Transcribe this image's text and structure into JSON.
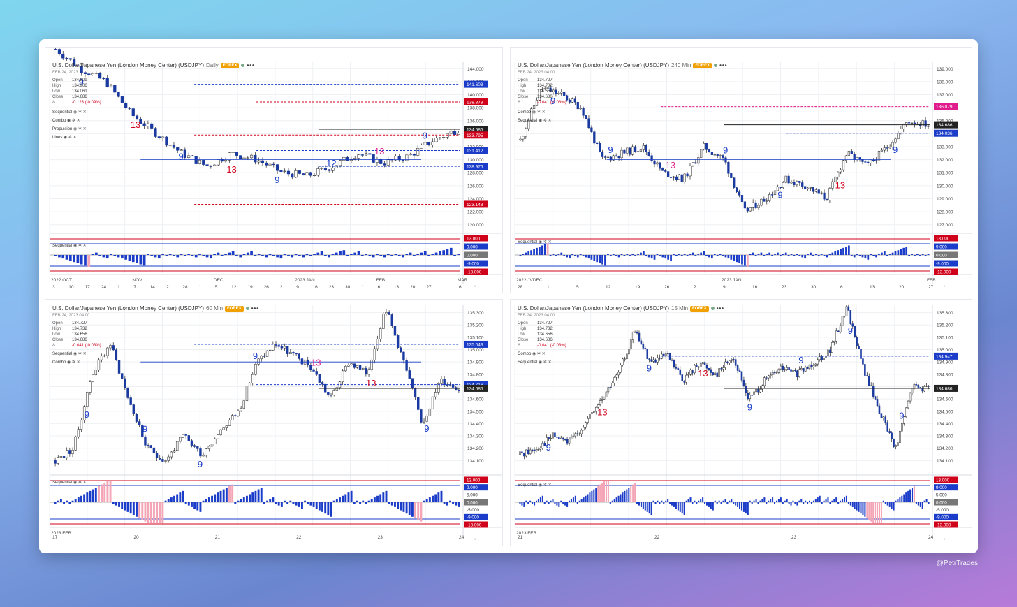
{
  "credit": "@PetrTrades",
  "colors": {
    "bull": "#ffffff",
    "bear": "#1a3aa0",
    "accent_blue": "#1a3cc8",
    "accent_red": "#d0021b",
    "magenta": "#e01b8c",
    "histo_pink": "#f4a6b6",
    "grid": "#eef0f4",
    "badge": "#f0a000"
  },
  "panels": [
    {
      "id": "daily",
      "title": "U.S. Dollar/Japanese Yen (London Money Center) (USDJPY)",
      "interval": "Daily",
      "badge": "FOREX",
      "date": "FEB 24, 2023",
      "ohlc": [
        {
          "k": "Open",
          "v": "134.809"
        },
        {
          "k": "High",
          "v": "134.906"
        },
        {
          "k": "Low",
          "v": "134.061"
        },
        {
          "k": "Close",
          "v": "134.686"
        },
        {
          "k": "Δ",
          "v": "-0.123 (-0.09%)"
        }
      ],
      "studies": [
        "Sequential",
        "Combo",
        "Propulsion",
        "Lines"
      ],
      "sub_label": "Sequential",
      "price_ticks": [
        "144.000",
        "142.000",
        "140.000",
        "138.000",
        "136.000",
        "134.000",
        "132.000",
        "130.000",
        "128.000",
        "126.000",
        "124.000",
        "122.000",
        "120.000"
      ],
      "y_range": [
        119,
        145
      ],
      "price_badges": [
        {
          "v": "141.603",
          "color": "#1a3cc8"
        },
        {
          "v": "138.878",
          "color": "#d0021b"
        },
        {
          "v": "134.686",
          "color": "#222222"
        },
        {
          "v": "133.795",
          "color": "#d0021b"
        },
        {
          "v": "131.412",
          "color": "#1a3cc8"
        },
        {
          "v": "128.976",
          "color": "#1a3cc8"
        },
        {
          "v": "123.143",
          "color": "#d0021b"
        }
      ],
      "sub_badges": [
        "13.000",
        "9.000",
        "0.000",
        "-9.000",
        "-13.000"
      ],
      "x_row1": [
        "2022 OCT",
        "NOV",
        "DEC",
        "2023 JAN",
        "FEB",
        "MAR"
      ],
      "x_row2": [
        "3",
        "10",
        "17",
        "24",
        "1",
        "7",
        "14",
        "21",
        "28",
        "1",
        "5",
        "12",
        "19",
        "26",
        "2",
        "9",
        "16",
        "23",
        "30",
        "1",
        "6",
        "13",
        "20",
        "27",
        "1",
        "6"
      ],
      "seed": 7,
      "path": [
        147,
        144,
        142,
        137,
        134,
        131,
        129,
        131,
        130,
        128,
        127.5,
        129,
        131,
        129.5,
        130.5,
        133,
        134.686
      ],
      "labels": [
        "9",
        "13",
        "9",
        "13",
        "9",
        "12",
        "13",
        "9"
      ],
      "nbars": 110
    },
    {
      "id": "m240",
      "title": "U.S. Dollar/Japanese Yen (London Money Center) (USDJPY)",
      "interval": "240 Min",
      "badge": "FOREX",
      "date": "FEB 24, 2023  04:00",
      "ohlc": [
        {
          "k": "Open",
          "v": "134.727"
        },
        {
          "k": "High",
          "v": "134.732"
        },
        {
          "k": "Low",
          "v": "134.656"
        },
        {
          "k": "Close",
          "v": "134.686"
        },
        {
          "k": "Δ",
          "v": "-0.041 (-0.03%)"
        }
      ],
      "studies": [
        "Combo",
        "Sequential"
      ],
      "sub_label": "Sequential",
      "price_ticks": [
        "139.000",
        "138.000",
        "137.000",
        "136.000",
        "135.000",
        "134.000",
        "133.000",
        "132.000",
        "131.000",
        "130.000",
        "129.000",
        "128.000",
        "127.000"
      ],
      "y_range": [
        126.5,
        139.5
      ],
      "price_badges": [
        {
          "v": "136.079",
          "color": "#e01b8c"
        },
        {
          "v": "134.686",
          "color": "#222222"
        },
        {
          "v": "134.036",
          "color": "#1a3cc8"
        }
      ],
      "sub_badges": [
        "13.000",
        "9.000",
        "0.000",
        "-9.000",
        "-13.000"
      ],
      "x_row1": [
        "2022 JVDEC",
        "2023 JAN",
        "FEB"
      ],
      "x_row2": [
        "28",
        "1",
        "5",
        "12",
        "19",
        "26",
        "2",
        "9",
        "16",
        "23",
        "30",
        "6",
        "13",
        "20",
        "27"
      ],
      "seed": 11,
      "path": [
        133.5,
        137.5,
        137,
        136,
        132,
        132.5,
        133,
        131,
        130.5,
        133,
        132,
        128,
        129,
        130.5,
        130,
        129,
        132.5,
        131.5,
        133,
        135,
        134.686
      ],
      "labels": [
        "9",
        "9",
        "13",
        "9",
        "9",
        "13",
        "9"
      ],
      "nbars": 150
    },
    {
      "id": "m60",
      "title": "U.S. Dollar/Japanese Yen (London Money Center) (USDJPY)",
      "interval": "60 Min",
      "badge": "FOREX",
      "date": "FEB 24, 2023  04:00",
      "ohlc": [
        {
          "k": "Open",
          "v": "134.727"
        },
        {
          "k": "High",
          "v": "134.732"
        },
        {
          "k": "Low",
          "v": "134.656"
        },
        {
          "k": "Close",
          "v": "134.686"
        },
        {
          "k": "Δ",
          "v": "-0.041 (-0.03%)"
        }
      ],
      "studies": [
        "Sequential",
        "Combo"
      ],
      "sub_label": "Sequential",
      "price_ticks": [
        "135.300",
        "135.200",
        "135.100",
        "135.000",
        "134.900",
        "134.800",
        "134.700",
        "134.600",
        "134.500",
        "134.400",
        "134.300",
        "134.200",
        "134.100"
      ],
      "y_range": [
        134.0,
        135.36
      ],
      "price_badges": [
        {
          "v": "135.043",
          "color": "#1a3cc8"
        },
        {
          "v": "134.716",
          "color": "#1a3cc8"
        },
        {
          "v": "134.686",
          "color": "#222222"
        }
      ],
      "sub_badges": [
        "13.000",
        "9.000",
        "5.000",
        "0.000",
        "-5.000",
        "-9.000",
        "-13.000"
      ],
      "x_row1": [
        "2023 FEB"
      ],
      "x_row2": [
        "17",
        "20",
        "21",
        "22",
        "23",
        "24"
      ],
      "seed": 23,
      "path": [
        134.1,
        134.2,
        134.8,
        135.05,
        134.6,
        134.2,
        134.1,
        134.3,
        134.15,
        134.35,
        134.5,
        134.9,
        135.05,
        134.95,
        134.85,
        134.6,
        134.9,
        134.8,
        135.35,
        134.9,
        134.4,
        134.75,
        134.686
      ],
      "labels": [
        "9",
        "9",
        "9",
        "9",
        "13",
        "13",
        "9"
      ],
      "nbars": 140
    },
    {
      "id": "m15",
      "title": "U.S. Dollar/Japanese Yen (London Money Center) (USDJPY)",
      "interval": "15 Min",
      "badge": "FOREX",
      "date": "FEB 24, 2023  04:00",
      "ohlc": [
        {
          "k": "Open",
          "v": "134.727"
        },
        {
          "k": "High",
          "v": "134.732"
        },
        {
          "k": "Low",
          "v": "134.656"
        },
        {
          "k": "Close",
          "v": "134.686"
        },
        {
          "k": "Δ",
          "v": "-0.041 (-0.03%)"
        }
      ],
      "studies": [
        "Combo",
        "Sequential"
      ],
      "sub_label": "Sequential",
      "price_ticks": [
        "135.300",
        "135.200",
        "135.100",
        "135.000",
        "134.900",
        "134.800",
        "134.700",
        "134.600",
        "134.500",
        "134.400",
        "134.300",
        "134.200",
        "134.100"
      ],
      "y_range": [
        134.0,
        135.36
      ],
      "price_badges": [
        {
          "v": "134.947",
          "color": "#1a3cc8"
        },
        {
          "v": "134.686",
          "color": "#222222"
        }
      ],
      "sub_badges": [
        "13.000",
        "9.000",
        "5.000",
        "0.000",
        "-5.000",
        "-9.000",
        "-13.000"
      ],
      "x_row1": [
        "2023 FEB"
      ],
      "x_row2": [
        "21",
        "22",
        "23",
        "24"
      ],
      "seed": 41,
      "path": [
        134.15,
        134.2,
        134.3,
        134.25,
        134.4,
        134.6,
        134.8,
        135.15,
        134.9,
        134.95,
        134.75,
        134.9,
        134.8,
        134.95,
        134.6,
        134.75,
        134.85,
        134.8,
        134.9,
        135.0,
        135.35,
        134.85,
        134.5,
        134.2,
        134.7,
        134.686
      ],
      "labels": [
        "9",
        "13",
        "9",
        "13",
        "9",
        "9",
        "9",
        "9"
      ],
      "nbars": 200
    }
  ],
  "chart_data": [
    {
      "type": "candlestick",
      "title": "U.S. Dollar/Japanese Yen (London Money Center) (USDJPY) Daily",
      "ylim": [
        120,
        144
      ],
      "last": {
        "open": 134.809,
        "high": 134.906,
        "low": 134.061,
        "close": 134.686
      }
    },
    {
      "type": "candlestick",
      "title": "U.S. Dollar/Japanese Yen (London Money Center) (USDJPY) 240 Min",
      "ylim": [
        127,
        139
      ],
      "last": {
        "open": 134.727,
        "high": 134.732,
        "low": 134.656,
        "close": 134.686
      }
    },
    {
      "type": "candlestick",
      "title": "U.S. Dollar/Japanese Yen (London Money Center) (USDJPY) 60 Min",
      "ylim": [
        134.1,
        135.3
      ],
      "last": {
        "open": 134.727,
        "high": 134.732,
        "low": 134.656,
        "close": 134.686
      }
    },
    {
      "type": "candlestick",
      "title": "U.S. Dollar/Japanese Yen (London Money Center) (USDJPY) 15 Min",
      "ylim": [
        134.1,
        135.3
      ],
      "last": {
        "open": 134.727,
        "high": 134.732,
        "low": 134.656,
        "close": 134.686
      }
    }
  ]
}
